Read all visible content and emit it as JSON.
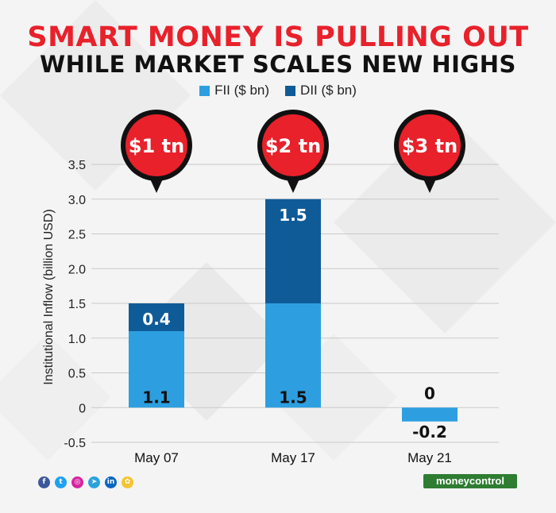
{
  "title_line1": "SMART MONEY IS PULLING OUT",
  "title_line2": "WHILE MARKET SCALES NEW HIGHS",
  "legend": [
    {
      "label": "FII ($ bn)",
      "color": "#2d9fe0"
    },
    {
      "label": "DII ($ bn)",
      "color": "#0f5b98"
    }
  ],
  "brand": "moneycontrol",
  "social_icons": [
    "facebook-icon",
    "twitter-icon",
    "instagram-icon",
    "telegram-icon",
    "linkedin-icon",
    "koo-icon"
  ],
  "callouts": [
    "$1 tn",
    "$2 tn",
    "$3 tn"
  ],
  "chart_data": {
    "type": "bar",
    "stacked": true,
    "categories": [
      "May 07",
      "May 17",
      "May 21"
    ],
    "series": [
      {
        "name": "FII ($ bn)",
        "values": [
          1.1,
          1.5,
          -0.2
        ],
        "labels": [
          "1.1",
          "1.5",
          "-0.2"
        ],
        "color": "#2d9fe0"
      },
      {
        "name": "DII ($ bn)",
        "values": [
          0.4,
          1.5,
          0
        ],
        "labels": [
          "0.4",
          "1.5",
          "0"
        ],
        "color": "#0f5b98"
      }
    ],
    "ylabel": "Institutional Inflow (billion USD)",
    "ylim": [
      -0.5,
      3.5
    ],
    "yticks": [
      -0.5,
      0,
      0.5,
      1.0,
      1.5,
      2.0,
      2.5,
      3.0,
      3.5
    ],
    "ytick_labels": [
      "-0.5",
      "0",
      "0.5",
      "1.0",
      "1.5",
      "2.0",
      "2.5",
      "3.0",
      "3.5"
    ],
    "grid": true,
    "legend_position": "top"
  }
}
